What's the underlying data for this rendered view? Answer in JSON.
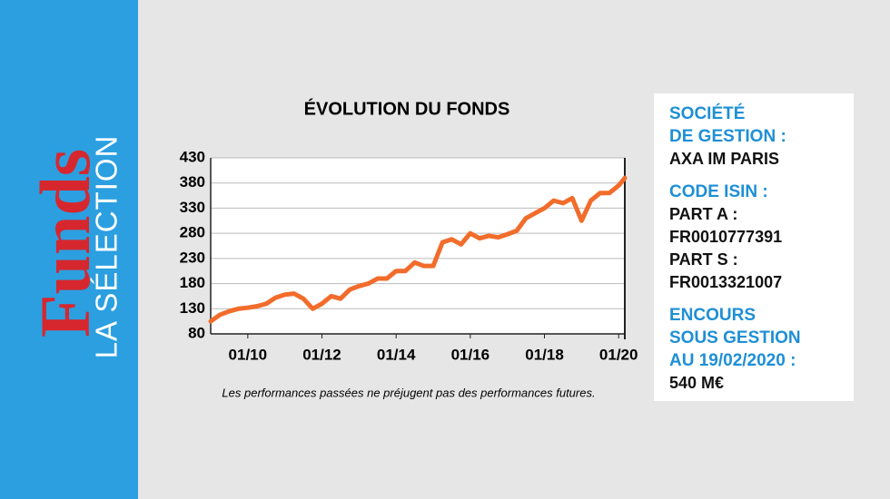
{
  "sidebar": {
    "title": "Funds",
    "subtitle": "LA SÉLECTION",
    "color": "#2b9fe0",
    "title_color": "#d7272e"
  },
  "chart_data": {
    "type": "line",
    "title": "ÉVOLUTION DU FONDS",
    "note": "Les performances passées ne préjugent pas des performances futures.",
    "x": [
      "01/09",
      "04/09",
      "07/09",
      "10/09",
      "01/10",
      "04/10",
      "07/10",
      "10/10",
      "01/11",
      "04/11",
      "07/11",
      "10/11",
      "01/12",
      "04/12",
      "07/12",
      "10/12",
      "01/13",
      "04/13",
      "07/13",
      "10/13",
      "01/14",
      "04/14",
      "07/14",
      "10/14",
      "01/15",
      "04/15",
      "07/15",
      "10/15",
      "01/16",
      "04/16",
      "07/16",
      "10/16",
      "01/17",
      "04/17",
      "07/17",
      "10/17",
      "01/18",
      "04/18",
      "07/18",
      "10/18",
      "01/19",
      "04/19",
      "07/19",
      "10/19",
      "01/20",
      "03/20"
    ],
    "series": [
      {
        "name": "Fonds",
        "color": "#f26c2b",
        "values": [
          105,
          118,
          125,
          130,
          132,
          135,
          140,
          152,
          158,
          160,
          150,
          130,
          140,
          155,
          150,
          168,
          175,
          180,
          190,
          190,
          205,
          205,
          222,
          215,
          215,
          262,
          268,
          258,
          280,
          270,
          275,
          272,
          278,
          285,
          310,
          320,
          330,
          345,
          340,
          350,
          305,
          345,
          360,
          360,
          375,
          390
        ]
      }
    ],
    "xlim": [
      "01/09",
      "03/20"
    ],
    "xticks": [
      "01/10",
      "01/12",
      "01/14",
      "01/16",
      "01/18",
      "01/20"
    ],
    "ylim": [
      80,
      430
    ],
    "yticks": [
      80,
      130,
      180,
      230,
      280,
      330,
      380,
      430
    ],
    "grid": true
  },
  "info": {
    "heading_color": "#1e8fd6",
    "groups": [
      {
        "heading": [
          "SOCIÉTÉ",
          "DE GESTION :"
        ],
        "body": [
          "AXA IM PARIS"
        ]
      },
      {
        "heading": [
          "CODE ISIN :"
        ],
        "body": [
          "PART A :",
          "FR0010777391",
          "PART S :",
          "FR0013321007"
        ]
      },
      {
        "heading": [
          "ENCOURS",
          "SOUS GESTION",
          "AU 19/02/2020 :"
        ],
        "body": [
          "540 M€"
        ]
      }
    ]
  }
}
